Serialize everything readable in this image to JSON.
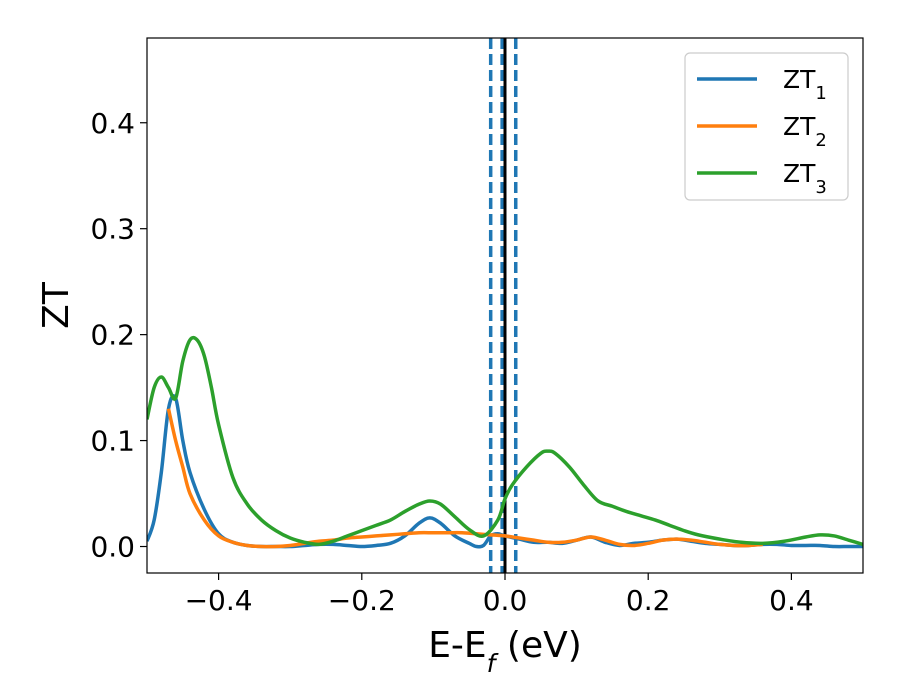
{
  "chart_data": {
    "type": "line",
    "xlabel": "E-E",
    "xlabel_sub": "f",
    "xlabel_unit": " (eV)",
    "ylabel": "ZT",
    "xlim": [
      -0.5,
      0.5
    ],
    "ylim": [
      -0.025,
      0.48
    ],
    "xticks": [
      -0.4,
      -0.2,
      0.0,
      0.2,
      0.4
    ],
    "xtick_labels": [
      "−0.4",
      "−0.2",
      "0.0",
      "0.2",
      "0.4"
    ],
    "yticks": [
      0.0,
      0.1,
      0.2,
      0.3,
      0.4
    ],
    "ytick_labels": [
      "0.0",
      "0.1",
      "0.2",
      "0.3",
      "0.4"
    ],
    "legend_position": "top-right",
    "vlines": [
      {
        "x": -0.02,
        "style": "dashed",
        "color": "#1f77b4"
      },
      {
        "x": -0.004,
        "style": "dashed",
        "color": "#1f77b4"
      },
      {
        "x": 0.0,
        "style": "solid",
        "color": "#000000"
      },
      {
        "x": 0.015,
        "style": "dashed",
        "color": "#1f77b4"
      }
    ],
    "series": [
      {
        "name": "ZT",
        "name_sub": "1",
        "color": "#1f77b4",
        "x": [
          -0.5,
          -0.49,
          -0.48,
          -0.47,
          -0.46,
          -0.45,
          -0.44,
          -0.42,
          -0.4,
          -0.38,
          -0.36,
          -0.34,
          -0.32,
          -0.3,
          -0.28,
          -0.26,
          -0.24,
          -0.22,
          -0.2,
          -0.18,
          -0.16,
          -0.14,
          -0.12,
          -0.105,
          -0.09,
          -0.07,
          -0.05,
          -0.04,
          -0.03,
          -0.02,
          -0.01,
          0.0,
          0.02,
          0.04,
          0.06,
          0.08,
          0.1,
          0.12,
          0.14,
          0.16,
          0.18,
          0.2,
          0.22,
          0.24,
          0.26,
          0.28,
          0.3,
          0.32,
          0.34,
          0.36,
          0.38,
          0.4,
          0.42,
          0.44,
          0.46,
          0.48,
          0.5
        ],
        "y": [
          0.005,
          0.025,
          0.07,
          0.13,
          0.14,
          0.1,
          0.07,
          0.035,
          0.012,
          0.004,
          0.001,
          0.0,
          0.0,
          0.0,
          0.001,
          0.002,
          0.002,
          0.001,
          0.0,
          0.001,
          0.003,
          0.01,
          0.022,
          0.027,
          0.022,
          0.01,
          0.003,
          0.0,
          0.001,
          0.01,
          0.012,
          0.01,
          0.007,
          0.004,
          0.004,
          0.003,
          0.006,
          0.009,
          0.004,
          0.001,
          0.003,
          0.004,
          0.006,
          0.007,
          0.005,
          0.003,
          0.002,
          0.001,
          0.001,
          0.002,
          0.002,
          0.001,
          0.001,
          0.001,
          0.0,
          0.0,
          0.0
        ]
      },
      {
        "name": "ZT",
        "name_sub": "2",
        "color": "#ff7f0e",
        "x": [
          -0.47,
          -0.46,
          -0.45,
          -0.44,
          -0.42,
          -0.4,
          -0.38,
          -0.36,
          -0.34,
          -0.32,
          -0.3,
          -0.28,
          -0.26,
          -0.24,
          -0.22,
          -0.2,
          -0.18,
          -0.16,
          -0.14,
          -0.12,
          -0.1,
          -0.08,
          -0.06,
          -0.04,
          -0.02,
          0.0,
          0.02,
          0.04,
          0.06,
          0.08,
          0.1,
          0.12,
          0.14,
          0.16,
          0.18,
          0.2,
          0.22,
          0.24,
          0.26,
          0.28,
          0.3,
          0.32,
          0.34,
          0.36
        ],
        "y": [
          0.13,
          0.1,
          0.075,
          0.05,
          0.025,
          0.01,
          0.004,
          0.001,
          0.0,
          0.0,
          0.001,
          0.003,
          0.005,
          0.006,
          0.008,
          0.009,
          0.01,
          0.011,
          0.012,
          0.013,
          0.013,
          0.013,
          0.013,
          0.012,
          0.011,
          0.01,
          0.008,
          0.006,
          0.004,
          0.004,
          0.006,
          0.009,
          0.006,
          0.002,
          0.001,
          0.003,
          0.006,
          0.007,
          0.006,
          0.004,
          0.002,
          0.001,
          0.001,
          0.002
        ]
      },
      {
        "name": "ZT",
        "name_sub": "3",
        "color": "#2ca02c",
        "x": [
          -0.5,
          -0.49,
          -0.48,
          -0.47,
          -0.46,
          -0.45,
          -0.44,
          -0.43,
          -0.42,
          -0.41,
          -0.4,
          -0.38,
          -0.36,
          -0.34,
          -0.32,
          -0.3,
          -0.28,
          -0.26,
          -0.24,
          -0.22,
          -0.2,
          -0.18,
          -0.16,
          -0.14,
          -0.12,
          -0.105,
          -0.09,
          -0.07,
          -0.05,
          -0.03,
          -0.01,
          0.0,
          0.01,
          0.03,
          0.05,
          0.06,
          0.07,
          0.09,
          0.11,
          0.13,
          0.15,
          0.17,
          0.19,
          0.21,
          0.23,
          0.25,
          0.27,
          0.3,
          0.33,
          0.36,
          0.39,
          0.42,
          0.44,
          0.46,
          0.48,
          0.5
        ],
        "y": [
          0.12,
          0.15,
          0.16,
          0.15,
          0.14,
          0.175,
          0.195,
          0.195,
          0.18,
          0.15,
          0.115,
          0.065,
          0.04,
          0.025,
          0.015,
          0.008,
          0.004,
          0.002,
          0.005,
          0.01,
          0.015,
          0.02,
          0.025,
          0.033,
          0.04,
          0.043,
          0.04,
          0.028,
          0.016,
          0.01,
          0.025,
          0.045,
          0.058,
          0.075,
          0.088,
          0.09,
          0.088,
          0.075,
          0.058,
          0.043,
          0.038,
          0.033,
          0.029,
          0.025,
          0.02,
          0.015,
          0.011,
          0.007,
          0.004,
          0.003,
          0.005,
          0.009,
          0.011,
          0.01,
          0.006,
          0.002
        ]
      }
    ]
  }
}
